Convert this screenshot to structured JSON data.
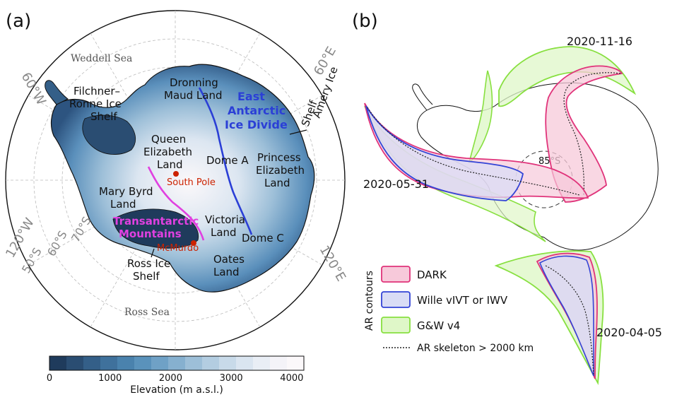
{
  "panel_a": {
    "tag": "(a)",
    "seas": {
      "weddell": "Weddell Sea",
      "ross": "Ross Sea"
    },
    "lon_labels": {
      "w60": "60°W",
      "e60": "60°E",
      "w120": "120°W",
      "e120": "120°E"
    },
    "lat_labels": {
      "s70": "70°S",
      "s60": "60°S",
      "s50": "50°S"
    },
    "regions": {
      "filchner_1": "Filchner–",
      "filchner_2": "Ronne Ice",
      "filchner_3": "Shelf",
      "dronning_1": "Dronning",
      "dronning_2": "Maud Land",
      "queen_1": "Queen",
      "queen_2": "Elizabeth",
      "queen_3": "Land",
      "dome_a": "Dome A",
      "princess_1": "Princess",
      "princess_2": "Elizabeth",
      "princess_3": "Land",
      "mary_1": "Mary Byrd",
      "mary_2": "Land",
      "victoria_1": "Victoria",
      "victoria_2": "Land",
      "dome_c": "Dome C",
      "oates_1": "Oates",
      "oates_2": "Land",
      "ross_1": "Ross Ice",
      "ross_2": "Shelf",
      "amery_1": "Amery Ice",
      "amery_2": "Shelf"
    },
    "ice_divide_1": "East",
    "ice_divide_2": "Antarctic",
    "ice_divide_3": "Ice Divide",
    "tam_1": "Transantarctic",
    "tam_2": "Mountains",
    "south_pole": "South Pole",
    "mcmurdo": "McMurdo",
    "colorbar": {
      "title": "Elevation (m a.s.l.)",
      "ticks": [
        "0",
        "1000",
        "2000",
        "3000",
        "4000"
      ],
      "tick_values": [
        0,
        1000,
        2000,
        3000,
        4000
      ],
      "min": 0,
      "max": 4200,
      "colors": [
        "#1f3b5c",
        "#2a4d72",
        "#345f88",
        "#3f719c",
        "#4a82ad",
        "#5a92bb",
        "#6fa1c6",
        "#86b0cf",
        "#9dbfd8",
        "#b3cde1",
        "#c8dae9",
        "#dae5f0",
        "#e9eef5",
        "#f4f3f8",
        "#fbf8fa"
      ]
    },
    "colors": {
      "ice_divide": "#2b3fd6",
      "tam": "#e040e0",
      "station": "#cc2200"
    }
  },
  "panel_b": {
    "tag": "(b)",
    "dates": {
      "nov": "2020-11-16",
      "may": "2020-05-31",
      "apr": "2020-04-05"
    },
    "lat_circle": "85°S",
    "legend": {
      "group_label": "AR contours",
      "items": [
        {
          "label": "DARK",
          "fill": "#f7c9da",
          "stroke": "#e0337a"
        },
        {
          "label": "Wille vIVT or IWV",
          "fill": "#d9dcf5",
          "stroke": "#3344d6"
        },
        {
          "label": "G&W v4",
          "fill": "#dff7c8",
          "stroke": "#88e040"
        }
      ],
      "skeleton_label": "AR skeleton > 2000 km"
    }
  }
}
